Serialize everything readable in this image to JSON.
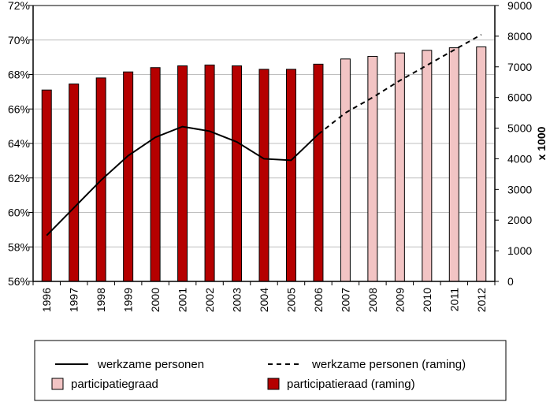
{
  "chart_data": {
    "type": "bar",
    "categories": [
      "1996",
      "1997",
      "1998",
      "1999",
      "2000",
      "2001",
      "2002",
      "2003",
      "2004",
      "2005",
      "2006",
      "2007",
      "2008",
      "2009",
      "2010",
      "2011",
      "2012"
    ],
    "bar_series": {
      "name_actual": "participatiegraad",
      "name_forecast": "participatieraad (raming)",
      "values_pct": [
        67.1,
        67.45,
        67.8,
        68.15,
        68.4,
        68.5,
        68.55,
        68.5,
        68.3,
        68.3,
        68.6,
        68.9,
        69.05,
        69.25,
        69.4,
        69.55,
        69.6
      ],
      "forecast_flags": [
        true,
        true,
        true,
        true,
        true,
        true,
        true,
        true,
        true,
        true,
        true,
        false,
        false,
        false,
        false,
        false,
        false
      ]
    },
    "line_series": {
      "name_actual": "werkzame personen",
      "name_forecast": "werkzame personen (raming)",
      "actual_x": [
        "1996",
        "1997",
        "1998",
        "1999",
        "2000",
        "2001",
        "2002",
        "2003",
        "2004",
        "2005",
        "2006"
      ],
      "actual_values": [
        1500,
        2400,
        3300,
        4100,
        4700,
        5050,
        4900,
        4550,
        4000,
        3950,
        4800
      ],
      "forecast_x": [
        "2006",
        "2007",
        "2008",
        "2009",
        "2010",
        "2011",
        "2012"
      ],
      "forecast_values": [
        4800,
        5500,
        6000,
        6550,
        7050,
        7550,
        8050
      ]
    },
    "left_axis": {
      "min": 56,
      "max": 72,
      "step": 2,
      "tick_labels": [
        "56%",
        "58%",
        "60%",
        "62%",
        "64%",
        "66%",
        "68%",
        "70%",
        "72%"
      ]
    },
    "right_axis": {
      "min": 0,
      "max": 9000,
      "step": 1000,
      "label": "x 1000",
      "tick_labels": [
        "0",
        "1000",
        "2000",
        "3000",
        "4000",
        "5000",
        "6000",
        "7000",
        "8000",
        "9000"
      ]
    },
    "gridlines": "horizontal",
    "colors": {
      "bar_forecast": "#b50000",
      "bar_actual": "#f2c4c4",
      "line": "#000000",
      "grid": "#bfbfbf"
    }
  },
  "legend": {
    "items": [
      {
        "label": "werkzame personen",
        "kind": "line-solid"
      },
      {
        "label": "werkzame personen (raming)",
        "kind": "line-dashed"
      },
      {
        "label": "participatiegraad",
        "kind": "box-light"
      },
      {
        "label": "participatieraad (raming)",
        "kind": "box-dark"
      }
    ]
  }
}
